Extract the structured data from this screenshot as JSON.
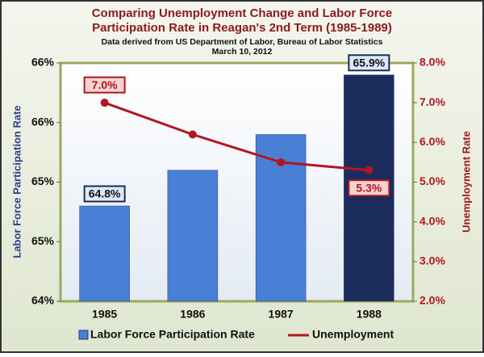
{
  "chart_data": {
    "type": "combo",
    "title": [
      "Comparing Unemployment Change and Labor Force",
      "Participation Rate in Reagan's 2nd Term (1985-1989)"
    ],
    "subtitle": [
      "Data derived from US Department of Labor, Bureau of Labor Statistics",
      "March 10, 2012"
    ],
    "categories": [
      "1985",
      "1986",
      "1987",
      "1988"
    ],
    "series": [
      {
        "name": "Labor Force Participation Rate",
        "type": "bar",
        "color": "#4a7fd6",
        "colors": [
          "#4a7fd6",
          "#4a7fd6",
          "#4a7fd6",
          "#1b2c5c"
        ],
        "values": [
          64.8,
          65.1,
          65.4,
          65.9
        ],
        "value_labels": [
          "64.8%",
          null,
          null,
          "65.9%"
        ]
      },
      {
        "name": "Unemployment",
        "type": "line",
        "axis": "y2",
        "color": "#b0171f",
        "values": [
          7.0,
          6.2,
          5.5,
          5.3
        ],
        "value_labels": [
          "7.0%",
          null,
          null,
          "5.3%"
        ]
      }
    ],
    "ylabel": "Labor Force Participation Rate",
    "y2label": "Unemployment Rate",
    "ylim": [
      64,
      66
    ],
    "yticks": [
      {
        "value": 64,
        "label": "64%"
      },
      {
        "value": 64.5,
        "label": "65%"
      },
      {
        "value": 65,
        "label": "65%"
      },
      {
        "value": 65.5,
        "label": "66%"
      },
      {
        "value": 66,
        "label": "66%"
      }
    ],
    "y2lim": [
      2,
      8
    ],
    "y2ticks": [
      {
        "value": 2,
        "label": "2.0%"
      },
      {
        "value": 3,
        "label": "3.0%"
      },
      {
        "value": 4,
        "label": "4.0%"
      },
      {
        "value": 5,
        "label": "5.0%"
      },
      {
        "value": 6,
        "label": "6.0%"
      },
      {
        "value": 7,
        "label": "7.0%"
      },
      {
        "value": 8,
        "label": "8.0%"
      }
    ],
    "legend": "bottom"
  }
}
